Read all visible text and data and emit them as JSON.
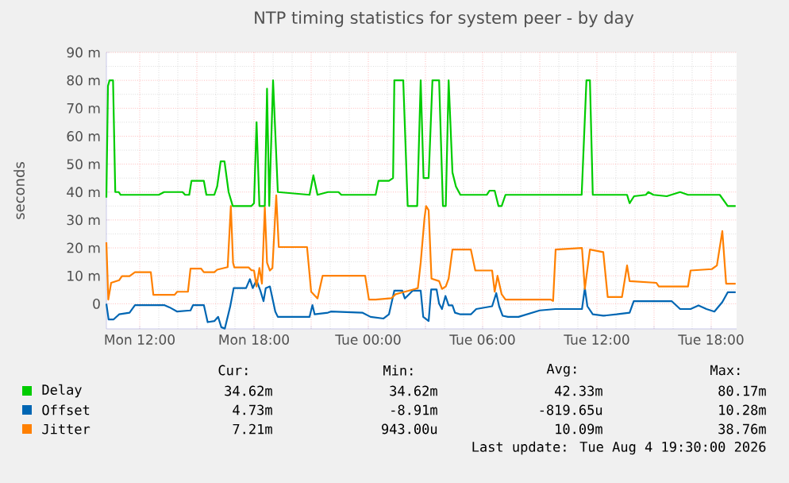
{
  "chart_data": {
    "type": "line",
    "title": "NTP timing statistics for system peer - by day",
    "ylabel": "seconds",
    "xlim": [
      "2026-08-03T10:15",
      "2026-08-04T19:20"
    ],
    "ylim": [
      -9,
      90
    ],
    "xticks": [
      {
        "value": "2026-08-03T12:00",
        "label": "Mon 12:00"
      },
      {
        "value": "2026-08-03T15:00",
        "label": null
      },
      {
        "value": "2026-08-03T18:00",
        "label": "Mon 18:00"
      },
      {
        "value": "2026-08-03T21:00",
        "label": null
      },
      {
        "value": "2026-08-04T00:00",
        "label": "Tue 00:00"
      },
      {
        "value": "2026-08-04T03:00",
        "label": null
      },
      {
        "value": "2026-08-04T06:00",
        "label": "Tue 06:00"
      },
      {
        "value": "2026-08-04T09:00",
        "label": null
      },
      {
        "value": "2026-08-04T12:00",
        "label": "Tue 12:00"
      },
      {
        "value": "2026-08-04T15:00",
        "label": null
      },
      {
        "value": "2026-08-04T18:00",
        "label": "Tue 18:00"
      }
    ],
    "yticks": [
      0,
      {
        "value": 10,
        "label": "10 m"
      },
      {
        "value": 20,
        "label": "20 m"
      },
      {
        "value": 30,
        "label": "30 m"
      },
      {
        "value": 40,
        "label": "40 m"
      },
      {
        "value": 50,
        "label": "50 m"
      },
      {
        "value": 60,
        "label": "60 m"
      },
      {
        "value": 70,
        "label": "70 m"
      },
      {
        "value": 80,
        "label": "80 m"
      },
      {
        "value": 90,
        "label": "90 m"
      }
    ],
    "grid": true,
    "legend": "bottom",
    "line_style": "solid",
    "series": [
      {
        "name": "Delay",
        "color": "#00cc00",
        "x": [
          "2026-08-03T10:15",
          "2026-08-03T10:20",
          "2026-08-03T10:25",
          "2026-08-03T10:36",
          "2026-08-03T10:43",
          "2026-08-03T10:54",
          "2026-08-03T11:00",
          "2026-08-03T13:00",
          "2026-08-03T13:17",
          "2026-08-03T14:15",
          "2026-08-03T14:23",
          "2026-08-03T14:36",
          "2026-08-03T14:43",
          "2026-08-03T15:22",
          "2026-08-03T15:30",
          "2026-08-03T15:55",
          "2026-08-03T16:04",
          "2026-08-03T16:15",
          "2026-08-03T16:27",
          "2026-08-03T16:40",
          "2026-08-03T16:53",
          "2026-08-03T17:52",
          "2026-08-03T18:00",
          "2026-08-03T18:08",
          "2026-08-03T18:17",
          "2026-08-03T18:34",
          "2026-08-03T18:41",
          "2026-08-03T18:48",
          "2026-08-03T19:00",
          "2026-08-03T19:15",
          "2026-08-03T20:55",
          "2026-08-03T21:07",
          "2026-08-03T21:20",
          "2026-08-03T21:53",
          "2026-08-03T22:26",
          "2026-08-03T22:35",
          "2026-08-04T00:23",
          "2026-08-04T00:32",
          "2026-08-04T01:05",
          "2026-08-04T01:18",
          "2026-08-04T01:22",
          "2026-08-04T01:50",
          "2026-08-04T02:04",
          "2026-08-04T02:34",
          "2026-08-04T02:45",
          "2026-08-04T02:54",
          "2026-08-04T03:10",
          "2026-08-04T03:22",
          "2026-08-04T03:43",
          "2026-08-04T03:55",
          "2026-08-04T04:04",
          "2026-08-04T04:13",
          "2026-08-04T04:25",
          "2026-08-04T04:36",
          "2026-08-04T04:50",
          "2026-08-04T06:13",
          "2026-08-04T06:22",
          "2026-08-04T06:38",
          "2026-08-04T06:50",
          "2026-08-04T07:00",
          "2026-08-04T07:12",
          "2026-08-04T11:12",
          "2026-08-04T11:27",
          "2026-08-04T11:38",
          "2026-08-04T11:47",
          "2026-08-04T13:35",
          "2026-08-04T13:43",
          "2026-08-04T13:57",
          "2026-08-04T14:34",
          "2026-08-04T14:42",
          "2026-08-04T14:58",
          "2026-08-04T15:40",
          "2026-08-04T16:22",
          "2026-08-04T16:47",
          "2026-08-04T18:27",
          "2026-08-04T18:52",
          "2026-08-04T19:17"
        ],
        "values": [
          38,
          78,
          80,
          80,
          40,
          40,
          39,
          39,
          40,
          40,
          39,
          39,
          44,
          44,
          39,
          39,
          42,
          51,
          51,
          40,
          35,
          35,
          36,
          65,
          35,
          35,
          77,
          35,
          80,
          40,
          39,
          46,
          39,
          40,
          40,
          39,
          39,
          44,
          44,
          45,
          80,
          80,
          35,
          35,
          80,
          45,
          45,
          80,
          80,
          35,
          35,
          80,
          47,
          42,
          39,
          39,
          40.5,
          40.5,
          35,
          35,
          39,
          39,
          80,
          80,
          39,
          39,
          36,
          38.5,
          39,
          40,
          39,
          38.5,
          40,
          39,
          39,
          35,
          35
        ]
      },
      {
        "name": "Offset",
        "color": "#0066b3",
        "x": [
          "2026-08-03T10:15",
          "2026-08-03T10:22",
          "2026-08-03T10:38",
          "2026-08-03T10:55",
          "2026-08-03T11:28",
          "2026-08-03T11:45",
          "2026-08-03T13:17",
          "2026-08-03T13:34",
          "2026-08-03T13:58",
          "2026-08-03T14:40",
          "2026-08-03T14:48",
          "2026-08-03T15:22",
          "2026-08-03T15:34",
          "2026-08-03T15:55",
          "2026-08-03T16:07",
          "2026-08-03T16:17",
          "2026-08-03T16:28",
          "2026-08-03T16:45",
          "2026-08-03T16:56",
          "2026-08-03T17:35",
          "2026-08-03T17:47",
          "2026-08-03T17:56",
          "2026-08-03T18:08",
          "2026-08-03T18:20",
          "2026-08-03T18:30",
          "2026-08-03T18:37",
          "2026-08-03T18:50",
          "2026-08-03T19:07",
          "2026-08-03T19:15",
          "2026-08-03T20:55",
          "2026-08-03T21:04",
          "2026-08-03T21:11",
          "2026-08-03T21:53",
          "2026-08-03T22:02",
          "2026-08-03T23:41",
          "2026-08-04T00:07",
          "2026-08-04T00:48",
          "2026-08-04T01:05",
          "2026-08-04T01:22",
          "2026-08-04T01:47",
          "2026-08-04T01:55",
          "2026-08-04T02:12",
          "2026-08-04T02:20",
          "2026-08-04T02:45",
          "2026-08-04T02:53",
          "2026-08-04T03:10",
          "2026-08-04T03:18",
          "2026-08-04T03:35",
          "2026-08-04T03:43",
          "2026-08-04T03:52",
          "2026-08-04T04:03",
          "2026-08-04T04:13",
          "2026-08-04T04:25",
          "2026-08-04T04:33",
          "2026-08-04T04:50",
          "2026-08-04T05:23",
          "2026-08-04T05:40",
          "2026-08-04T06:30",
          "2026-08-04T06:43",
          "2026-08-04T06:52",
          "2026-08-04T07:03",
          "2026-08-04T07:20",
          "2026-08-04T07:53",
          "2026-08-04T09:00",
          "2026-08-04T09:50",
          "2026-08-04T11:13",
          "2026-08-04T11:22",
          "2026-08-04T11:30",
          "2026-08-04T11:47",
          "2026-08-04T12:20",
          "2026-08-04T13:02",
          "2026-08-04T13:43",
          "2026-08-04T13:56",
          "2026-08-04T15:56",
          "2026-08-04T16:22",
          "2026-08-04T16:55",
          "2026-08-04T17:20",
          "2026-08-04T17:45",
          "2026-08-04T18:10",
          "2026-08-04T18:35",
          "2026-08-04T18:52",
          "2026-08-04T19:17"
        ],
        "values": [
          0,
          -5.6,
          -5.6,
          -3.8,
          -3.2,
          -0.5,
          -0.5,
          -1.3,
          -2.8,
          -2.4,
          -0.5,
          -0.5,
          -6.6,
          -6.2,
          -4.7,
          -8.4,
          -8.9,
          -1,
          5.6,
          5.6,
          8.8,
          5.6,
          8.4,
          4.7,
          0.9,
          5.6,
          6.2,
          -2.8,
          -4.7,
          -4.7,
          -0.5,
          -3.8,
          -3.2,
          -2.8,
          -3.2,
          -4.7,
          -5.3,
          -3.8,
          4.7,
          4.7,
          1.9,
          3.8,
          4.7,
          4.7,
          -4.7,
          -6.2,
          5.1,
          5.1,
          0,
          -1.9,
          2.8,
          -0.6,
          -0.6,
          -3.2,
          -3.8,
          -3.8,
          -1.9,
          -0.9,
          3.8,
          -0.9,
          -4.3,
          -4.7,
          -4.7,
          -2.4,
          -1.9,
          -1.9,
          5.6,
          -0.9,
          -3.8,
          -4.3,
          -3.8,
          -3.2,
          0.9,
          0.9,
          -1.9,
          -1.9,
          -0.6,
          -1.9,
          -2.8,
          0.6,
          4.1,
          4.1
        ]
      },
      {
        "name": "Jitter",
        "color": "#ff8000",
        "x": [
          "2026-08-03T10:15",
          "2026-08-03T10:21",
          "2026-08-03T10:30",
          "2026-08-03T10:55",
          "2026-08-03T11:04",
          "2026-08-03T11:28",
          "2026-08-03T11:45",
          "2026-08-03T12:35",
          "2026-08-03T12:43",
          "2026-08-03T13:50",
          "2026-08-03T13:58",
          "2026-08-03T14:32",
          "2026-08-03T14:40",
          "2026-08-03T15:13",
          "2026-08-03T15:22",
          "2026-08-03T15:55",
          "2026-08-03T16:04",
          "2026-08-03T16:37",
          "2026-08-03T16:47",
          "2026-08-03T16:54",
          "2026-08-03T16:58",
          "2026-08-03T17:43",
          "2026-08-03T17:52",
          "2026-08-03T18:00",
          "2026-08-03T18:08",
          "2026-08-03T18:17",
          "2026-08-03T18:25",
          "2026-08-03T18:34",
          "2026-08-03T18:41",
          "2026-08-03T18:50",
          "2026-08-03T18:58",
          "2026-08-03T19:10",
          "2026-08-03T19:18",
          "2026-08-03T20:47",
          "2026-08-03T21:00",
          "2026-08-03T21:20",
          "2026-08-03T21:36",
          "2026-08-03T23:50",
          "2026-08-04T00:02",
          "2026-08-04T00:23",
          "2026-08-04T01:13",
          "2026-08-04T01:26",
          "2026-08-04T01:55",
          "2026-08-04T02:28",
          "2026-08-04T02:36",
          "2026-08-04T02:45",
          "2026-08-04T02:57",
          "2026-08-04T03:02",
          "2026-08-04T03:10",
          "2026-08-04T03:19",
          "2026-08-04T03:43",
          "2026-08-04T03:52",
          "2026-08-04T04:04",
          "2026-08-04T04:13",
          "2026-08-04T04:25",
          "2026-08-04T05:23",
          "2026-08-04T05:37",
          "2026-08-04T06:30",
          "2026-08-04T06:38",
          "2026-08-04T06:47",
          "2026-08-04T07:00",
          "2026-08-04T07:12",
          "2026-08-04T09:34",
          "2026-08-04T09:42",
          "2026-08-04T09:50",
          "2026-08-04T11:13",
          "2026-08-04T11:22",
          "2026-08-04T11:38",
          "2026-08-04T12:20",
          "2026-08-04T12:34",
          "2026-08-04T13:19",
          "2026-08-04T13:35",
          "2026-08-04T13:43",
          "2026-08-04T15:07",
          "2026-08-04T15:15",
          "2026-08-04T16:47",
          "2026-08-04T16:55",
          "2026-08-04T18:02",
          "2026-08-04T18:18",
          "2026-08-04T18:35",
          "2026-08-04T18:47",
          "2026-08-04T19:17"
        ],
        "values": [
          22,
          1.5,
          7.5,
          8.4,
          9.9,
          9.9,
          11.3,
          11.3,
          3.2,
          3.2,
          4.3,
          4.3,
          12.6,
          12.6,
          11.3,
          11.3,
          12.2,
          13.1,
          35,
          14.7,
          13,
          13,
          12,
          11.9,
          6.2,
          12.8,
          7.2,
          34.5,
          14.7,
          11.9,
          12.8,
          38.8,
          20.3,
          20.3,
          4.3,
          1.9,
          10,
          10,
          1.5,
          1.5,
          2,
          3.4,
          4.3,
          5.3,
          5.6,
          14.7,
          30.7,
          35,
          33.5,
          9,
          8.1,
          5.3,
          6.2,
          9,
          19.4,
          19.4,
          11.9,
          11.9,
          4.3,
          10,
          3.4,
          1.5,
          1.5,
          1.0,
          19.4,
          20,
          5.3,
          19.4,
          18.5,
          2.4,
          2.4,
          13.7,
          8.1,
          7.5,
          6.2,
          6.2,
          11.9,
          12.4,
          13.7,
          26,
          7.2,
          7.2
        ]
      }
    ],
    "annotations": [
      "Cur:",
      "Min:",
      "Avg:",
      "Max:",
      "34.62m",
      "34.62m",
      "42.33m",
      "80.17m",
      "4.73m",
      "-8.91m",
      "-819.65u",
      "10.28m",
      "7.21m",
      "943.00u",
      "10.09m",
      "38.76m",
      "Last update: Tue Aug  4 19:30:00 2026"
    ]
  }
}
